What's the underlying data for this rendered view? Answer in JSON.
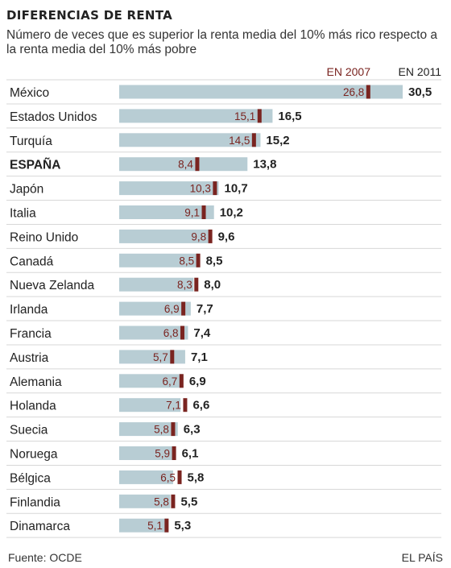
{
  "header": {
    "title": "DIFERENCIAS DE RENTA",
    "subtitle": "Número de veces que es superior la renta media del 10% más rico respecto a la renta media del 10% más pobre"
  },
  "footer": {
    "source": "Fuente: OCDE",
    "credit": "EL PAÍS"
  },
  "colors": {
    "bar_2011": "#b8cdd4",
    "marker_2007": "#7a2420",
    "label_2007": "#7a2420",
    "separator": "#d7d7d7"
  },
  "chart_data": {
    "type": "bar",
    "orientation": "horizontal",
    "title": "DIFERENCIAS DE RENTA",
    "subtitle": "Número de veces que es superior la renta media del 10% más rico respecto a la renta media del 10% más pobre",
    "legend": [
      "EN 2007",
      "EN 2011"
    ],
    "legend_placement": "top-right",
    "xlim": [
      0,
      30.5
    ],
    "categories": [
      "México",
      "Estados Unidos",
      "Turquía",
      "ESPAÑA",
      "Japón",
      "Italia",
      "Reino Unido",
      "Canadá",
      "Nueva Zelanda",
      "Irlanda",
      "Francia",
      "Austria",
      "Alemania",
      "Holanda",
      "Suecia",
      "Noruega",
      "Bélgica",
      "Finlandia",
      "Dinamarca"
    ],
    "highlight": "ESPAÑA",
    "series": [
      {
        "name": "EN 2011",
        "values": [
          30.5,
          16.5,
          15.2,
          13.8,
          10.7,
          10.2,
          9.6,
          8.5,
          8.0,
          7.7,
          7.4,
          7.1,
          6.9,
          6.6,
          6.3,
          6.1,
          5.8,
          5.5,
          5.3
        ],
        "labels": [
          "30,5",
          "16,5",
          "15,2",
          "13,8",
          "10,7",
          "10,2",
          "9,6",
          "8,5",
          "8,0",
          "7,7",
          "7,4",
          "7,1",
          "6,9",
          "6,6",
          "6,3",
          "6,1",
          "5,8",
          "5,5",
          "5,3"
        ]
      },
      {
        "name": "EN 2007",
        "values": [
          26.8,
          15.1,
          14.5,
          8.4,
          10.3,
          9.1,
          9.8,
          8.5,
          8.3,
          6.9,
          6.8,
          5.7,
          6.7,
          7.1,
          5.8,
          5.9,
          6.5,
          5.8,
          5.1
        ],
        "labels": [
          "26,8",
          "15,1",
          "14,5",
          "8,4",
          "10,3",
          "9,1",
          "9,8",
          "8,5",
          "8,3",
          "6,9",
          "6,8",
          "5,7",
          "6,7",
          "7,1",
          "5,8",
          "5,9",
          "6,5",
          "5,8",
          "5,1"
        ]
      }
    ]
  }
}
